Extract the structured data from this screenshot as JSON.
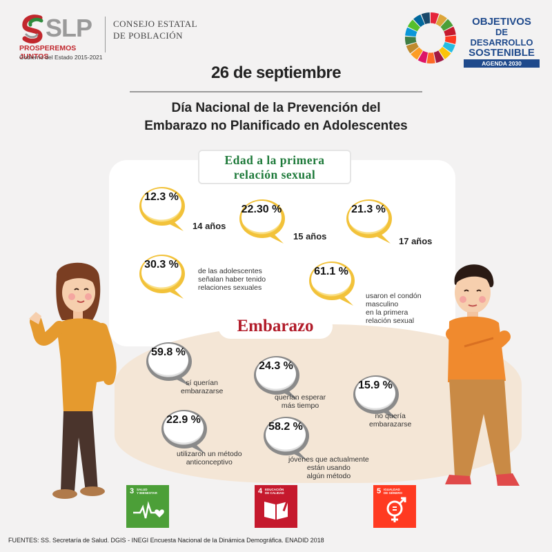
{
  "header": {
    "logo_slp": "SLP",
    "logo_tagline": "PROSPEREMOS JUNTOS",
    "logo_sub": "Gobierno del Estado 2015-2021",
    "consejo_line1": "CONSEJO ESTATAL",
    "consejo_line2": "DE POBLACIÓN",
    "ods_line1": "OBJETIVOS",
    "ods_line2": "DE DESARROLLO",
    "ods_line3": "SOSTENIBLE",
    "ods_agenda": "AGENDA 2030"
  },
  "date": "26 de septiembre",
  "title_line1": "Día  Nacional de la Prevención del",
  "title_line2": "Embarazo no Planificado en Adolescentes",
  "section_first": {
    "title_line1": "Edad a la primera",
    "title_line2": "relación sexual",
    "items": [
      {
        "value": "12.3 %",
        "label": "14 años"
      },
      {
        "value": "22.30 %",
        "label": "15 años"
      },
      {
        "value": "21.3 %",
        "label": "17 años"
      },
      {
        "value": "30.3 %",
        "label_lines": [
          "de las adolescentes",
          "señalan haber tenido",
          "relaciones sexuales"
        ]
      },
      {
        "value": "61.1 %",
        "label_lines": [
          "usaron el condón",
          "masculino",
          "en la primera",
          "relación sexual"
        ]
      }
    ]
  },
  "section_pregnancy": {
    "title": "Embarazo",
    "items": [
      {
        "value": "59.8 %",
        "label_lines": [
          "sí querían",
          "embarazarse"
        ]
      },
      {
        "value": "24.3 %",
        "label_lines": [
          "querían esperar",
          "más tiempo"
        ]
      },
      {
        "value": "15.9 %",
        "label_lines": [
          "no quería",
          "embarazarse"
        ]
      },
      {
        "value": "22.9 %",
        "label_lines": [
          "utilizaron un método",
          "anticonceptivo"
        ]
      },
      {
        "value": "58.2 %",
        "label_lines": [
          "jóvenes que actualmente",
          "están usando",
          "algún método"
        ]
      }
    ]
  },
  "sdgs": [
    {
      "num": "3",
      "name_line1": "SALUD",
      "name_line2": "Y BIENESTAR",
      "color": "#4c9f38"
    },
    {
      "num": "4",
      "name_line1": "EDUCACIÓN",
      "name_line2": "DE CALIDAD",
      "color": "#c5192d"
    },
    {
      "num": "5",
      "name_line1": "IGUALDAD",
      "name_line2": "DE GÉNERO",
      "color": "#ff3a21"
    }
  ],
  "colors": {
    "bubble_yellow": "#f2c23a",
    "bubble_gray": "#8a8a8a",
    "green_title": "#1e7a3a",
    "red_title": "#b21d2b",
    "ods_blue": "#1f4a8c"
  },
  "footer": "FUENTES: SS. Secretaría de Salud. DGIS - INEGI Encuesta Nacional de la Dinámica Demográfica. ENADID 2018"
}
